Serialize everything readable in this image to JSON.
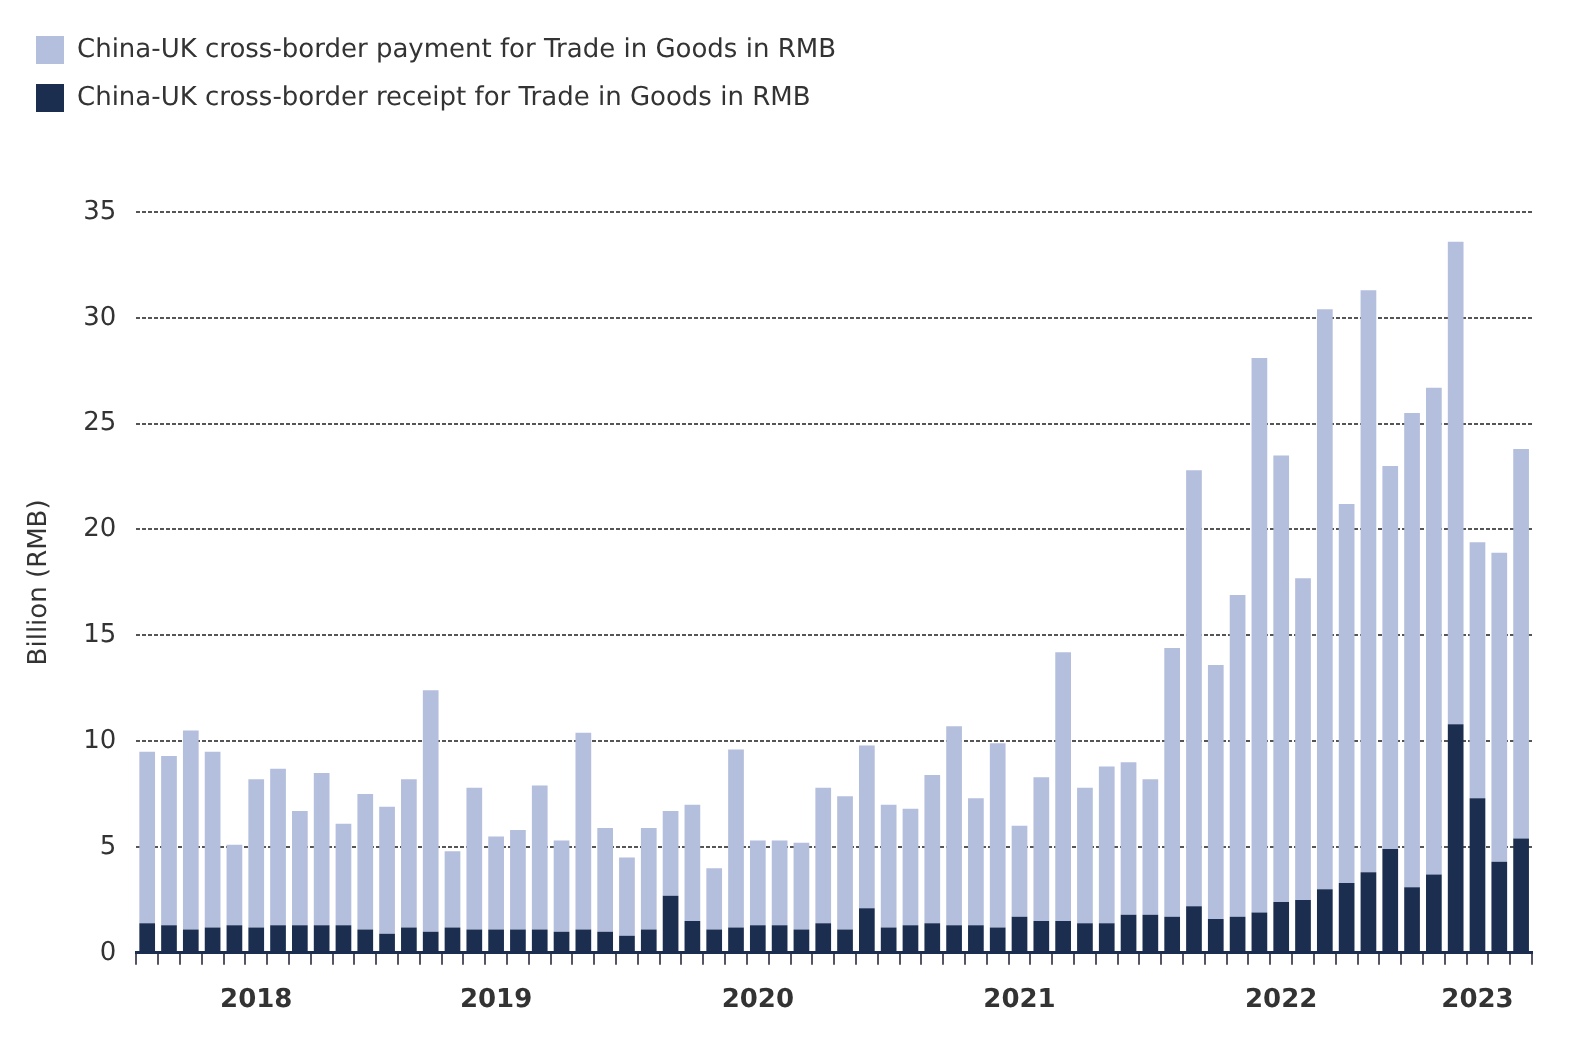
{
  "chart_data": {
    "type": "bar",
    "ylabel": "Billion (RMB)",
    "stacked": true,
    "categories": [
      null,
      null,
      null,
      null,
      null,
      "2018",
      null,
      null,
      null,
      null,
      null,
      null,
      null,
      null,
      null,
      null,
      "2019",
      null,
      null,
      null,
      null,
      null,
      null,
      null,
      null,
      null,
      null,
      null,
      "2020",
      null,
      null,
      null,
      null,
      null,
      null,
      null,
      null,
      null,
      null,
      null,
      "2021",
      null,
      null,
      null,
      null,
      null,
      null,
      null,
      null,
      null,
      null,
      null,
      "2022",
      null,
      null,
      null,
      null,
      null,
      null,
      null,
      null,
      "2023",
      null,
      null
    ],
    "series": [
      {
        "name": "China-UK cross-border receipt for Trade in Goods in RMB",
        "color": "#1b2e50",
        "values": [
          1.4,
          1.3,
          1.1,
          1.2,
          1.3,
          1.2,
          1.3,
          1.3,
          1.3,
          1.3,
          1.1,
          0.9,
          1.2,
          1.0,
          1.2,
          1.1,
          1.1,
          1.1,
          1.1,
          1.0,
          1.1,
          1.0,
          0.8,
          1.1,
          2.7,
          1.5,
          1.1,
          1.2,
          1.3,
          1.3,
          1.1,
          1.4,
          1.1,
          2.1,
          1.2,
          1.3,
          1.4,
          1.3,
          1.3,
          1.2,
          1.7,
          1.5,
          1.5,
          1.4,
          1.4,
          1.8,
          1.8,
          1.7,
          2.2,
          1.6,
          1.7,
          1.9,
          2.4,
          2.5,
          3.0,
          3.3,
          3.8,
          4.9,
          3.1,
          3.7,
          10.8,
          7.3,
          4.3,
          5.4
        ]
      },
      {
        "name": "China-UK cross-border payment for Trade in Goods in RMB",
        "color": "#b4bedd",
        "values": [
          8.1,
          8.0,
          9.4,
          8.3,
          3.8,
          7.0,
          7.4,
          5.4,
          7.2,
          4.8,
          6.4,
          6.0,
          7.0,
          11.4,
          3.6,
          6.7,
          4.4,
          4.7,
          6.8,
          4.3,
          9.3,
          4.9,
          3.7,
          4.8,
          4.0,
          5.5,
          2.9,
          8.4,
          4.0,
          4.0,
          4.1,
          6.4,
          6.3,
          7.7,
          5.8,
          5.5,
          7.0,
          9.4,
          6.0,
          8.7,
          4.3,
          6.8,
          12.7,
          6.4,
          7.4,
          7.2,
          6.4,
          12.7,
          20.6,
          12.0,
          15.2,
          26.2,
          21.1,
          15.2,
          27.4,
          17.9,
          27.5,
          18.1,
          22.4,
          23.0,
          22.8,
          12.1,
          14.6,
          18.4
        ]
      }
    ],
    "ylim": [
      0,
      35
    ],
    "yticks": [
      0,
      5,
      10,
      15,
      20,
      25,
      30,
      35
    ],
    "grid": "y",
    "legend": "top left"
  }
}
